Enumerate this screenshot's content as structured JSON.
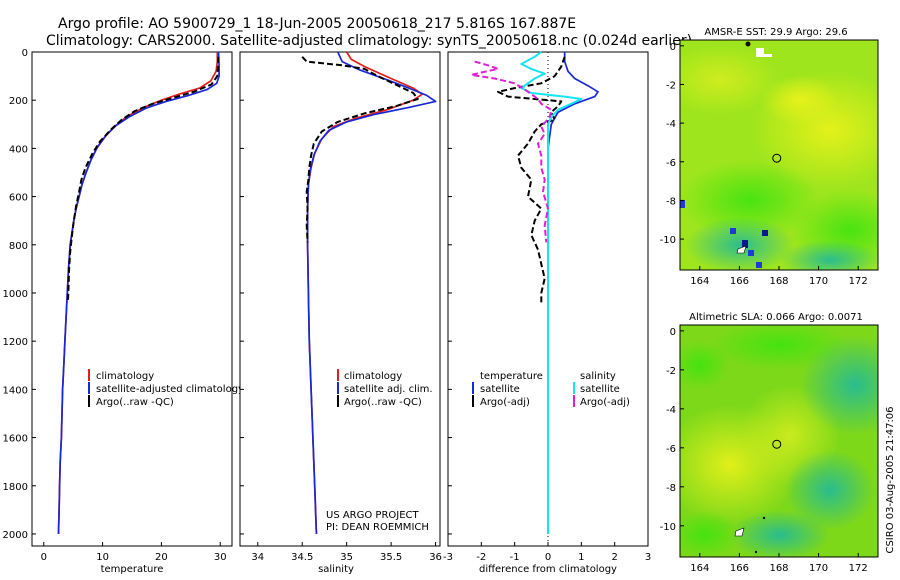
{
  "header": {
    "line1": "Argo profile: AO 5900729_1 18-Jun-2005 20050618_217 5.816S 167.887E",
    "line2": "Climatology: CARS2000. Satellite-adjusted climatology: synTS_20050618.nc (0.024d earlier)"
  },
  "side_label": "CSIRO 03-Aug-2005 21:47:06",
  "project_note": {
    "line1": "US ARGO PROJECT",
    "line2": "PI: DEAN ROEMMICH"
  },
  "colors": {
    "climatology": "#e0201b",
    "satellite": "#1a27d6",
    "argo": "#000000",
    "cyan": "#16e4f0",
    "magenta": "#e21fd6"
  },
  "chart_data": [
    {
      "id": "temperature",
      "type": "line",
      "xlabel": "temperature",
      "ylabel": "",
      "xlim": [
        -2,
        32
      ],
      "ylim": [
        2050,
        0
      ],
      "xticks": [
        0,
        10,
        20,
        30
      ],
      "yticks": [
        0,
        200,
        400,
        600,
        800,
        1000,
        1200,
        1400,
        1600,
        1800,
        2000
      ],
      "legend": [
        "climatology",
        "satellite-adjusted climatology",
        "Argo(..raw -QC)"
      ],
      "series": [
        {
          "name": "climatology",
          "style": "red",
          "points": [
            [
              29.5,
              0
            ],
            [
              29.5,
              40
            ],
            [
              29.3,
              80
            ],
            [
              28.4,
              120
            ],
            [
              26.5,
              150
            ],
            [
              23,
              175
            ],
            [
              20,
              200
            ],
            [
              17,
              230
            ],
            [
              14,
              270
            ],
            [
              12,
              310
            ],
            [
              10.5,
              350
            ],
            [
              9,
              400
            ],
            [
              8,
              450
            ],
            [
              7.2,
              500
            ],
            [
              6.5,
              550
            ],
            [
              6,
              600
            ],
            [
              5.5,
              650
            ],
            [
              5.1,
              700
            ],
            [
              4.8,
              750
            ],
            [
              4.5,
              800
            ],
            [
              4.2,
              900
            ],
            [
              4,
              1000
            ],
            [
              3.8,
              1100
            ],
            [
              3.6,
              1200
            ],
            [
              3.4,
              1300
            ],
            [
              3.2,
              1400
            ],
            [
              3.1,
              1500
            ],
            [
              3,
              1600
            ],
            [
              2.8,
              1700
            ],
            [
              2.7,
              1800
            ],
            [
              2.6,
              1900
            ],
            [
              2.5,
              2000
            ]
          ]
        },
        {
          "name": "satellite-adjusted climatology",
          "style": "blue",
          "points": [
            [
              29.7,
              0
            ],
            [
              29.8,
              60
            ],
            [
              29.8,
              100
            ],
            [
              29.4,
              130
            ],
            [
              27.8,
              155
            ],
            [
              24.6,
              180
            ],
            [
              20.8,
              205
            ],
            [
              17.5,
              232
            ],
            [
              14.6,
              268
            ],
            [
              12.3,
              305
            ],
            [
              10.6,
              345
            ],
            [
              9.1,
              395
            ],
            [
              8,
              450
            ],
            [
              7.2,
              500
            ],
            [
              6.5,
              550
            ],
            [
              6,
              600
            ],
            [
              5.5,
              650
            ],
            [
              5.1,
              700
            ],
            [
              4.8,
              750
            ],
            [
              4.5,
              800
            ],
            [
              4.2,
              900
            ],
            [
              4,
              1000
            ],
            [
              3.8,
              1100
            ],
            [
              3.6,
              1200
            ],
            [
              3.4,
              1300
            ],
            [
              3.2,
              1400
            ],
            [
              3.1,
              1500
            ],
            [
              3,
              1600
            ],
            [
              2.8,
              1700
            ],
            [
              2.7,
              1800
            ],
            [
              2.6,
              1900
            ],
            [
              2.5,
              2000
            ]
          ]
        },
        {
          "name": "Argo(..raw -QC)",
          "style": "dash",
          "points": [
            [
              29.7,
              20
            ],
            [
              29.6,
              60
            ],
            [
              29.5,
              100
            ],
            [
              28.5,
              135
            ],
            [
              25.5,
              165
            ],
            [
              22,
              190
            ],
            [
              18.5,
              215
            ],
            [
              15.5,
              245
            ],
            [
              13.3,
              280
            ],
            [
              11.5,
              320
            ],
            [
              9.6,
              370
            ],
            [
              8.3,
              420
            ],
            [
              7.1,
              480
            ],
            [
              6.4,
              530
            ],
            [
              6,
              580
            ],
            [
              5.5,
              640
            ],
            [
              5.1,
              700
            ],
            [
              4.8,
              760
            ],
            [
              4.5,
              830
            ],
            [
              4.3,
              900
            ],
            [
              4.2,
              980
            ],
            [
              4.1,
              1040
            ]
          ]
        }
      ]
    },
    {
      "id": "salinity",
      "type": "line",
      "xlabel": "salinity",
      "ylabel": "",
      "xlim": [
        33.8,
        36.05
      ],
      "ylim": [
        2050,
        0
      ],
      "xticks": [
        34,
        34.5,
        35,
        35.5,
        36
      ],
      "legend": [
        "climatology",
        "satellite adj. clim.",
        "Argo(..raw -QC)"
      ],
      "series": [
        {
          "name": "climatology",
          "style": "red",
          "points": [
            [
              35,
              0
            ],
            [
              35.05,
              30
            ],
            [
              35.2,
              60
            ],
            [
              35.5,
              110
            ],
            [
              35.75,
              150
            ],
            [
              35.85,
              175
            ],
            [
              35.75,
              200
            ],
            [
              35.45,
              240
            ],
            [
              35.1,
              275
            ],
            [
              34.85,
              310
            ],
            [
              34.72,
              360
            ],
            [
              34.64,
              420
            ],
            [
              34.6,
              480
            ],
            [
              34.57,
              550
            ],
            [
              34.56,
              650
            ],
            [
              34.56,
              800
            ],
            [
              34.57,
              1000
            ],
            [
              34.58,
              1200
            ],
            [
              34.6,
              1400
            ],
            [
              34.62,
              1600
            ],
            [
              34.64,
              1800
            ],
            [
              34.66,
              2000
            ]
          ]
        },
        {
          "name": "satellite adj. clim.",
          "style": "blue",
          "points": [
            [
              34.9,
              0
            ],
            [
              34.95,
              40
            ],
            [
              35.15,
              75
            ],
            [
              35.45,
              115
            ],
            [
              35.7,
              150
            ],
            [
              35.9,
              180
            ],
            [
              36,
              205
            ],
            [
              35.7,
              230
            ],
            [
              35.3,
              260
            ],
            [
              35,
              290
            ],
            [
              34.8,
              325
            ],
            [
              34.7,
              370
            ],
            [
              34.63,
              430
            ],
            [
              34.59,
              490
            ],
            [
              34.57,
              550
            ],
            [
              34.56,
              650
            ],
            [
              34.56,
              800
            ],
            [
              34.57,
              1000
            ],
            [
              34.58,
              1200
            ],
            [
              34.6,
              1400
            ],
            [
              34.62,
              1600
            ],
            [
              34.64,
              1800
            ],
            [
              34.66,
              2000
            ]
          ]
        },
        {
          "name": "Argo(..raw -QC)",
          "style": "dash",
          "points": [
            [
              34.5,
              20
            ],
            [
              34.55,
              40
            ],
            [
              34.95,
              55
            ],
            [
              35.2,
              70
            ],
            [
              35.35,
              100
            ],
            [
              35.55,
              135
            ],
            [
              35.75,
              170
            ],
            [
              35.8,
              195
            ],
            [
              35.55,
              225
            ],
            [
              35.2,
              255
            ],
            [
              34.9,
              290
            ],
            [
              34.72,
              330
            ],
            [
              34.63,
              380
            ],
            [
              34.6,
              430
            ],
            [
              34.58,
              480
            ],
            [
              34.57,
              530
            ],
            [
              34.55,
              580
            ],
            [
              34.56,
              650
            ],
            [
              34.55,
              720
            ],
            [
              34.56,
              790
            ]
          ]
        }
      ]
    },
    {
      "id": "difference",
      "type": "line",
      "xlabel": "difference from climatology",
      "ylabel": "",
      "xlim": [
        -3,
        3
      ],
      "ylim": [
        2050,
        0
      ],
      "xticks": [
        -3,
        -2,
        -1,
        0,
        1,
        2,
        3
      ],
      "legend_left": {
        "title": "temperature",
        "items": [
          "satellite",
          "Argo(-adj)"
        ]
      },
      "legend_right": {
        "title": "salinity",
        "items": [
          "satellite",
          "Argo(-adj)"
        ]
      },
      "series": [
        {
          "name": "temperature satellite",
          "style": "blue",
          "points": [
            [
              0.5,
              0
            ],
            [
              0.5,
              40
            ],
            [
              0.6,
              80
            ],
            [
              0.8,
              110
            ],
            [
              1.2,
              140
            ],
            [
              1.5,
              165
            ],
            [
              1.4,
              185
            ],
            [
              0.8,
              215
            ],
            [
              0.3,
              250
            ],
            [
              0.1,
              300
            ],
            [
              0,
              400
            ],
            [
              0,
              600
            ],
            [
              0,
              2000
            ]
          ]
        },
        {
          "name": "temperature Argo(-adj)",
          "style": "dash",
          "points": [
            [
              0.5,
              20
            ],
            [
              0.4,
              60
            ],
            [
              0.2,
              100
            ],
            [
              -0.2,
              130
            ],
            [
              -1,
              150
            ],
            [
              -1.5,
              165
            ],
            [
              -1.2,
              185
            ],
            [
              0.4,
              205
            ],
            [
              0.3,
              225
            ],
            [
              0.1,
              250
            ],
            [
              0.2,
              280
            ],
            [
              -0.2,
              300
            ],
            [
              -0.4,
              330
            ],
            [
              -0.6,
              380
            ],
            [
              -0.9,
              430
            ],
            [
              -0.8,
              480
            ],
            [
              -0.5,
              530
            ],
            [
              -0.6,
              600
            ],
            [
              -0.2,
              650
            ],
            [
              -0.4,
              700
            ],
            [
              -0.5,
              760
            ],
            [
              -0.3,
              820
            ],
            [
              -0.2,
              880
            ],
            [
              -0.1,
              940
            ],
            [
              -0.2,
              1000
            ],
            [
              -0.2,
              1040
            ]
          ]
        },
        {
          "name": "salinity satellite",
          "style": "cyan",
          "points": [
            [
              -0.2,
              0
            ],
            [
              -0.4,
              20
            ],
            [
              -0.8,
              50
            ],
            [
              -0.5,
              70
            ],
            [
              -0.1,
              90
            ],
            [
              -0.4,
              110
            ],
            [
              -0.8,
              150
            ],
            [
              -0.5,
              170
            ],
            [
              0.5,
              185
            ],
            [
              1,
              195
            ],
            [
              0.7,
              215
            ],
            [
              0.3,
              240
            ],
            [
              0.1,
              270
            ],
            [
              0,
              300
            ],
            [
              0,
              400
            ],
            [
              0,
              600
            ],
            [
              0,
              2000
            ]
          ]
        },
        {
          "name": "salinity Argo(-adj)",
          "style": "magenta",
          "points": [
            [
              -2.2,
              40
            ],
            [
              -1.8,
              55
            ],
            [
              -1.5,
              70
            ],
            [
              -2,
              85
            ],
            [
              -2.3,
              95
            ],
            [
              -1.6,
              110
            ],
            [
              -1,
              130
            ],
            [
              -0.7,
              155
            ],
            [
              -0.5,
              175
            ],
            [
              -0.3,
              195
            ],
            [
              -0.2,
              215
            ],
            [
              0.1,
              240
            ],
            [
              0.05,
              270
            ],
            [
              -0.2,
              310
            ],
            [
              -0.1,
              340
            ],
            [
              -0.3,
              380
            ],
            [
              -0.2,
              430
            ],
            [
              -0.2,
              480
            ],
            [
              -0.1,
              530
            ],
            [
              -0.15,
              580
            ],
            [
              0,
              650
            ],
            [
              -0.1,
              720
            ],
            [
              -0.05,
              790
            ]
          ]
        }
      ]
    },
    {
      "id": "sst-map",
      "type": "heatmap",
      "title": "AMSR-E SST: 29.9 Argo: 29.6",
      "xlim": [
        163,
        173
      ],
      "ylim": [
        -11.6,
        0.3
      ],
      "xticks": [
        164,
        166,
        168,
        170,
        172
      ],
      "yticks": [
        0,
        -2,
        -4,
        -6,
        -8,
        -10
      ],
      "argo_position": [
        167.887,
        -5.816
      ]
    },
    {
      "id": "sla-map",
      "type": "heatmap",
      "title": "Altimetric SLA: 0.066 Argo: 0.0071",
      "xlim": [
        163,
        173
      ],
      "ylim": [
        -11.6,
        0.3
      ],
      "xticks": [
        164,
        166,
        168,
        170,
        172
      ],
      "yticks": [
        0,
        -2,
        -4,
        -6,
        -8,
        -10
      ],
      "argo_position": [
        167.887,
        -5.816
      ]
    }
  ]
}
